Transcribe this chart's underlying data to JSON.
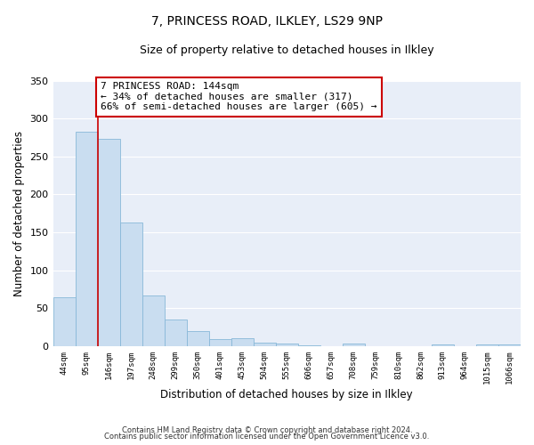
{
  "title": "7, PRINCESS ROAD, ILKLEY, LS29 9NP",
  "subtitle": "Size of property relative to detached houses in Ilkley",
  "xlabel": "Distribution of detached houses by size in Ilkley",
  "ylabel": "Number of detached properties",
  "categories": [
    "44sqm",
    "95sqm",
    "146sqm",
    "197sqm",
    "248sqm",
    "299sqm",
    "350sqm",
    "401sqm",
    "453sqm",
    "504sqm",
    "555sqm",
    "606sqm",
    "657sqm",
    "708sqm",
    "759sqm",
    "810sqm",
    "862sqm",
    "913sqm",
    "964sqm",
    "1015sqm",
    "1066sqm"
  ],
  "values": [
    65,
    283,
    273,
    163,
    67,
    35,
    20,
    9,
    10,
    5,
    4,
    1,
    0,
    3,
    0,
    0,
    0,
    2,
    0,
    2,
    2
  ],
  "bar_color": "#c9ddf0",
  "bar_edge_color": "#88b8d8",
  "bar_width": 1.0,
  "red_line_index": 2,
  "annotation_title": "7 PRINCESS ROAD: 144sqm",
  "annotation_line1": "← 34% of detached houses are smaller (317)",
  "annotation_line2": "66% of semi-detached houses are larger (605) →",
  "annotation_box_color": "#ffffff",
  "annotation_box_edge_color": "#cc0000",
  "ylim": [
    0,
    350
  ],
  "yticks": [
    0,
    50,
    100,
    150,
    200,
    250,
    300,
    350
  ],
  "plot_bg_color": "#e8eef8",
  "figure_bg_color": "#ffffff",
  "grid_color": "#ffffff",
  "footnote1": "Contains HM Land Registry data © Crown copyright and database right 2024.",
  "footnote2": "Contains public sector information licensed under the Open Government Licence v3.0."
}
